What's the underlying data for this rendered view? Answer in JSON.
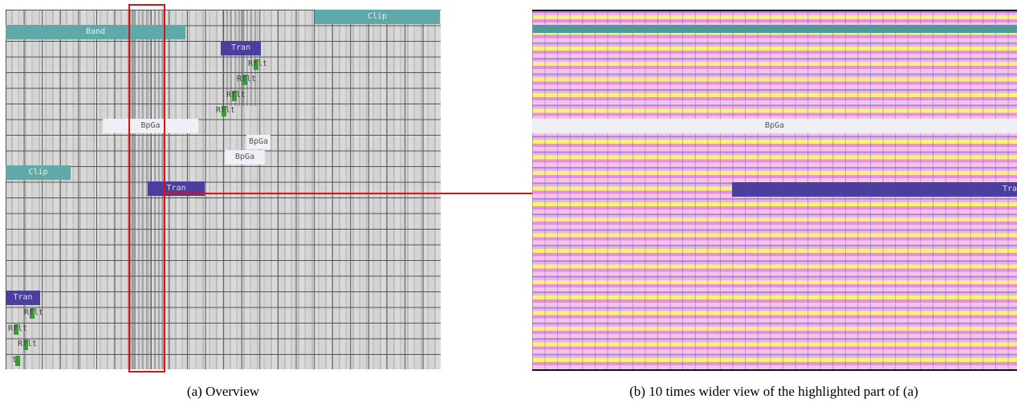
{
  "overview": {
    "blocks": [
      {
        "label": "Clip"
      },
      {
        "label": "Band"
      },
      {
        "label": "Tran"
      },
      {
        "label": "Rflt"
      },
      {
        "label": "Rflt"
      },
      {
        "label": "Rflt"
      },
      {
        "label": "Rflt"
      },
      {
        "label": "BpGa"
      },
      {
        "label": "BpGa"
      },
      {
        "label": "BpGa"
      },
      {
        "label": "Clip"
      },
      {
        "label": "Tran"
      },
      {
        "label": "Tran"
      },
      {
        "label": "Rflt"
      },
      {
        "label": "Rflt"
      },
      {
        "label": "Rflt"
      },
      {
        "label": "t"
      }
    ]
  },
  "detail": {
    "blocks": [
      {
        "label": "BpGa"
      },
      {
        "label": "Tra"
      }
    ]
  },
  "captions": {
    "overview": "(a) Overview",
    "detail": "(b) 10 times wider view of the highlighted part of (a)"
  }
}
